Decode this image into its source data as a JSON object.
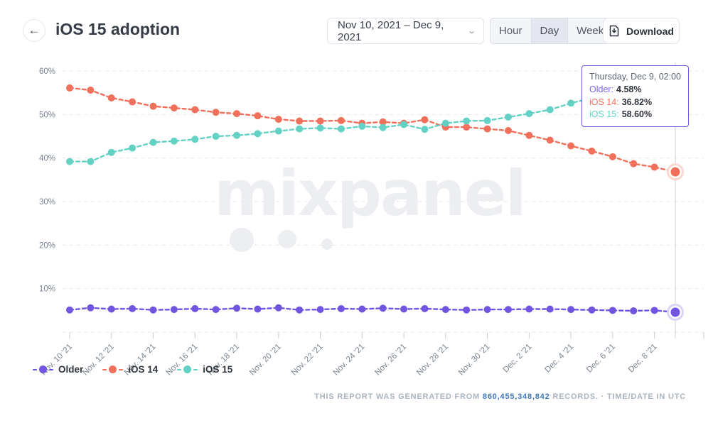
{
  "header": {
    "title": "iOS 15 adoption",
    "back_icon": "←",
    "date_range": "Nov 10, 2021 – Dec 9, 2021",
    "granularity": {
      "options": [
        "Hour",
        "Day",
        "Week"
      ],
      "selected": "Day"
    },
    "download_label": "Download"
  },
  "tooltip": {
    "date": "Thursday, Dec 9, 02:00",
    "rows": [
      {
        "label": "Older:",
        "value": "4.58%",
        "color": "#7C64EE"
      },
      {
        "label": "iOS 14:",
        "value": "36.82%",
        "color": "#F1705B"
      },
      {
        "label": "iOS 15:",
        "value": "58.60%",
        "color": "#63D2C5"
      }
    ]
  },
  "legend": [
    {
      "label": "Older",
      "color": "#7155E0"
    },
    {
      "label": "iOS 14",
      "color": "#F1705B"
    },
    {
      "label": "iOS 15",
      "color": "#63D2C5"
    }
  ],
  "footer": {
    "prefix": "THIS REPORT WAS GENERATED FROM ",
    "records": "860,455,348,842",
    "suffix": " RECORDS. · TIME/DATE IN UTC"
  },
  "chart_data": {
    "type": "line",
    "title": "iOS 15 adoption",
    "x": [
      "Nov 10",
      "Nov 11",
      "Nov 12",
      "Nov 13",
      "Nov 14",
      "Nov 15",
      "Nov 16",
      "Nov 17",
      "Nov 18",
      "Nov 19",
      "Nov 20",
      "Nov 21",
      "Nov 22",
      "Nov 23",
      "Nov 24",
      "Nov 25",
      "Nov 26",
      "Nov 27",
      "Nov 28",
      "Nov 29",
      "Nov 30",
      "Dec 1",
      "Dec 2",
      "Dec 3",
      "Dec 4",
      "Dec 5",
      "Dec 6",
      "Dec 7",
      "Dec 8",
      "Dec 9"
    ],
    "x_tick_labels": [
      "Nov. 10 '21",
      "Nov. 12 '21",
      "Nov. 14 '21",
      "Nov. 16 '21",
      "Nov. 18 '21",
      "Nov. 20 '21",
      "Nov. 22 '21",
      "Nov. 24 '21",
      "Nov. 26 '21",
      "Nov. 28 '21",
      "Nov. 30 '21",
      "Dec. 2 '21",
      "Dec. 4 '21",
      "Dec. 6 '21",
      "Dec. 8 '21"
    ],
    "y_tick_labels": [
      "10%",
      "20%",
      "30%",
      "40%",
      "50%",
      "60%"
    ],
    "y_ticks": [
      10,
      20,
      30,
      40,
      50,
      60
    ],
    "ylim": [
      0,
      62
    ],
    "grid": "dashed",
    "legend_position": "bottom",
    "watermark": "mixpanel",
    "series": [
      {
        "name": "Older",
        "color": "#7155E0",
        "halo": "#DCD4F8",
        "values": [
          5.1,
          5.6,
          5.3,
          5.4,
          5.1,
          5.2,
          5.4,
          5.2,
          5.5,
          5.3,
          5.6,
          5.1,
          5.2,
          5.4,
          5.3,
          5.5,
          5.3,
          5.4,
          5.2,
          5.1,
          5.2,
          5.2,
          5.3,
          5.3,
          5.2,
          5.1,
          5.0,
          4.9,
          5.0,
          4.58
        ]
      },
      {
        "name": "iOS 14",
        "color": "#F1705B",
        "halo": "#FBD7CF",
        "values": [
          56.1,
          55.6,
          53.8,
          52.9,
          51.9,
          51.5,
          51.1,
          50.5,
          50.2,
          49.7,
          48.9,
          48.5,
          48.5,
          48.6,
          48.0,
          48.3,
          48.0,
          48.8,
          47.1,
          47.1,
          46.7,
          46.3,
          45.2,
          44.1,
          42.8,
          41.6,
          40.3,
          38.7,
          37.9,
          36.82
        ]
      },
      {
        "name": "iOS 15",
        "color": "#63D2C5",
        "halo": "#CFF1EC",
        "values": [
          39.2,
          39.2,
          41.3,
          42.3,
          43.6,
          43.9,
          44.3,
          45.0,
          45.2,
          45.6,
          46.2,
          46.7,
          46.9,
          46.7,
          47.3,
          47.0,
          47.7,
          46.6,
          48.0,
          48.5,
          48.6,
          49.4,
          50.2,
          51.1,
          52.6,
          53.8,
          55.0,
          56.2,
          57.4,
          58.6
        ]
      }
    ],
    "hover_point": {
      "x": "Dec 9",
      "label": "Thursday, Dec 9, 02:00",
      "values": {
        "Older": 4.58,
        "iOS 14": 36.82,
        "iOS 15": 58.6
      }
    }
  },
  "style": {
    "grid_color": "#E4E6EA",
    "axis_text_color": "#7A8490",
    "tick_color": "#C7CCD3",
    "crosshair_color": "#D7DAE0",
    "watermark_color": "#EDEEF1"
  }
}
